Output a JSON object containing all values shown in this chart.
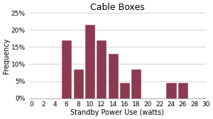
{
  "title": "Cable Boxes",
  "xlabel": "Standby Power Use (watts)",
  "ylabel": "Frequency",
  "bar_positions": [
    6,
    8,
    10,
    12,
    14,
    16,
    18,
    24,
    26
  ],
  "bar_heights": [
    0.17,
    0.085,
    0.215,
    0.17,
    0.13,
    0.045,
    0.085,
    0.045,
    0.045
  ],
  "bar_width": 1.6,
  "bar_color": "#8B3A52",
  "bar_edgecolor": "#8B3A52",
  "xlim": [
    -0.5,
    30
  ],
  "ylim": [
    0,
    0.25
  ],
  "xticks": [
    0,
    2,
    4,
    6,
    8,
    10,
    12,
    14,
    16,
    18,
    20,
    22,
    24,
    26,
    28,
    30
  ],
  "yticks": [
    0,
    0.05,
    0.1,
    0.15,
    0.2,
    0.25
  ],
  "ytick_labels": [
    "0%",
    "5%",
    "10%",
    "15%",
    "20%",
    "25%"
  ],
  "background_color": "#ffffff",
  "grid_color": "#c0c0c0",
  "title_fontsize": 9,
  "label_fontsize": 7,
  "tick_fontsize": 6.5
}
